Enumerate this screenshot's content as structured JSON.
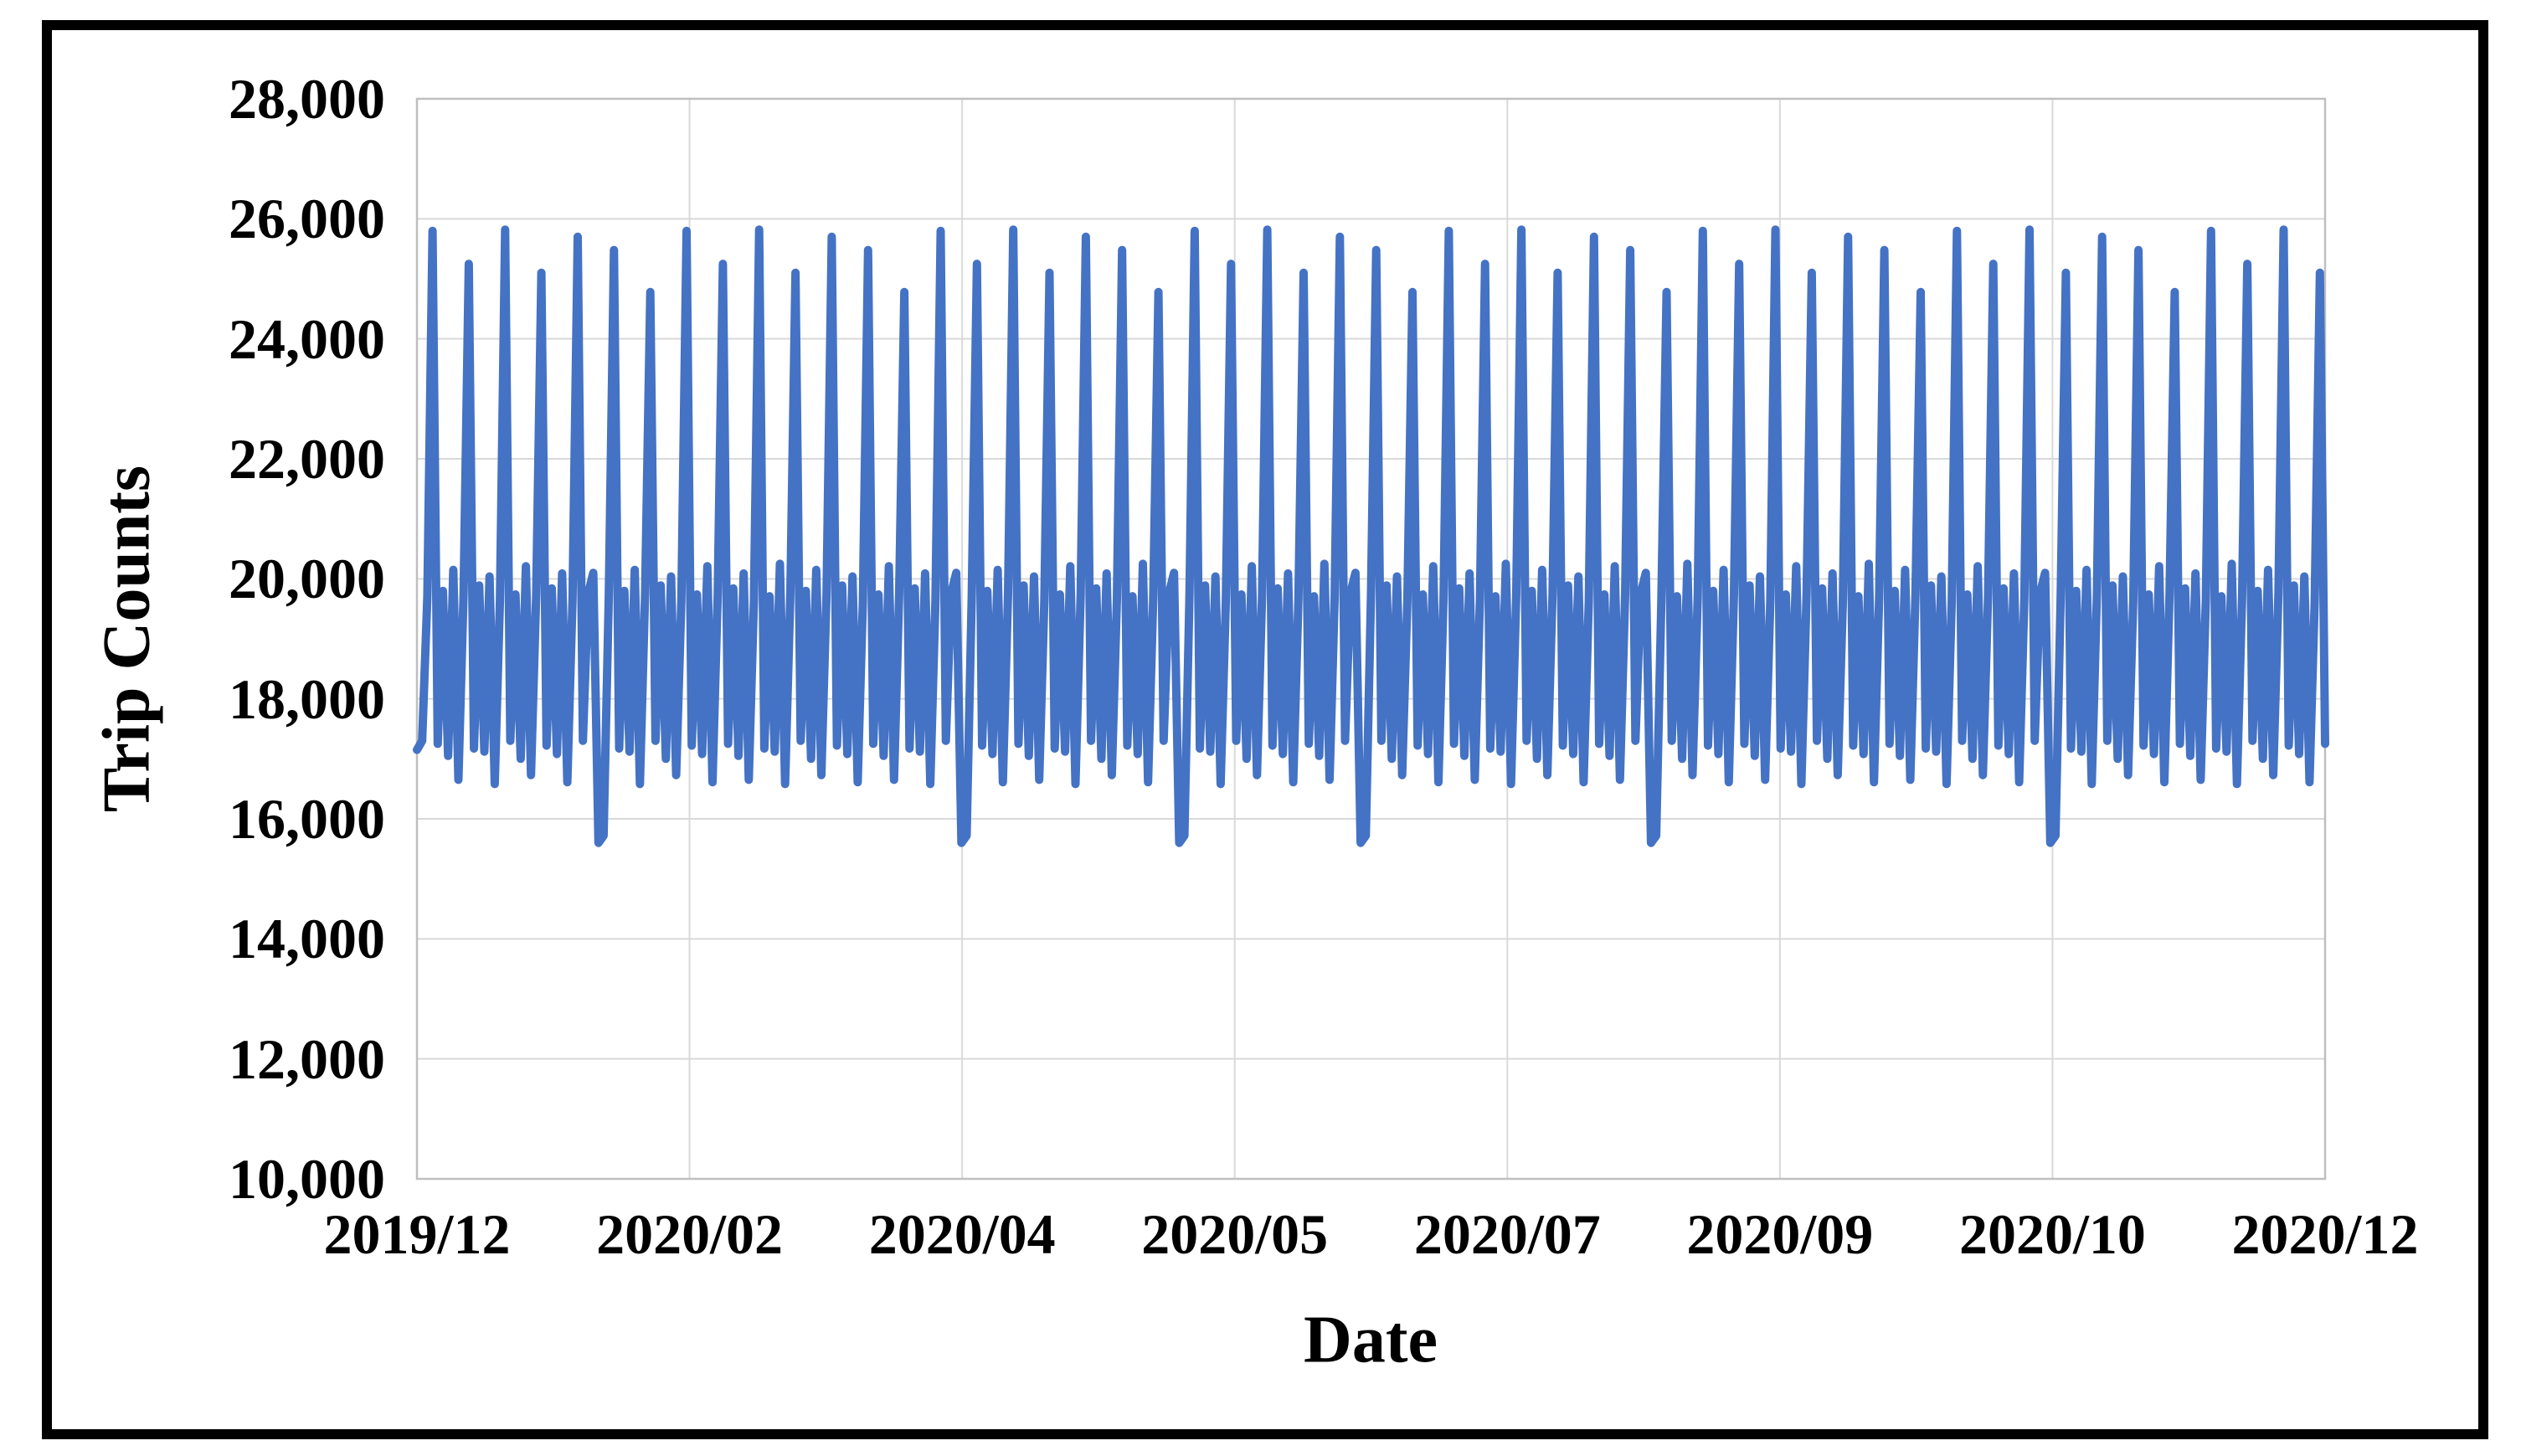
{
  "colors": {
    "line": "#4472C4",
    "gridline": "#D9D9D9",
    "plot_border": "#BFBFBF",
    "frame": "#000000",
    "background": "#FFFFFF",
    "text": "#000000"
  },
  "chart_data": {
    "type": "line",
    "title": "",
    "xlabel": "Date",
    "ylabel": "Trip Counts",
    "x_tick_labels": [
      "2019/12",
      "2020/02",
      "2020/04",
      "2020/05",
      "2020/07",
      "2020/09",
      "2020/10",
      "2020/12"
    ],
    "y_ticks": [
      10000,
      12000,
      14000,
      16000,
      18000,
      20000,
      22000,
      24000,
      26000,
      28000
    ],
    "y_tick_labels": [
      "10,000",
      "12,000",
      "14,000",
      "16,000",
      "18,000",
      "20,000",
      "22,000",
      "24,000",
      "26,000",
      "28,000"
    ],
    "ylim": [
      10000,
      28000
    ],
    "grid": true,
    "legend": "none",
    "marker": "none",
    "description": "Daily trip counts from 2019/12 to 2020/12 with weekly periodicity: one spike day near 25,000-25,800 per week, mid-week bumps near 19,700-20,250, valleys near 16,600-17,300, and deep dips to about 15,600 every 6-10 weeks.",
    "series": [
      {
        "name": "Trip Counts",
        "values": [
          17150,
          17300,
          19700,
          25800,
          17250,
          19800,
          17050,
          20150,
          16650,
          19760,
          25250,
          17170,
          19890,
          17120,
          20040,
          16580,
          19630,
          25820,
          17300,
          19740,
          17000,
          20210,
          16730,
          19730,
          25100,
          17220,
          19840,
          17080,
          20090,
          16610,
          19660,
          25700,
          17300,
          19750,
          20100,
          15600,
          15720,
          19700,
          25480,
          17170,
          19800,
          17120,
          20150,
          16580,
          19760,
          24780,
          17300,
          19890,
          17000,
          20040,
          16730,
          19630,
          25800,
          17220,
          19740,
          17080,
          20210,
          16610,
          19730,
          25250,
          17250,
          19840,
          17050,
          20090,
          16650,
          19660,
          25820,
          17170,
          19710,
          17120,
          20250,
          16580,
          19700,
          25100,
          17300,
          19800,
          17000,
          20150,
          16730,
          19760,
          25700,
          17220,
          19890,
          17080,
          20040,
          16610,
          19630,
          25480,
          17250,
          19740,
          17050,
          20210,
          16650,
          19730,
          24780,
          17170,
          19840,
          17120,
          20090,
          16580,
          19660,
          25800,
          17300,
          19750,
          20100,
          15600,
          15720,
          19700,
          25250,
          17220,
          19800,
          17080,
          20150,
          16610,
          19760,
          25820,
          17250,
          19890,
          17050,
          20040,
          16650,
          19630,
          25100,
          17170,
          19740,
          17120,
          20210,
          16580,
          19730,
          25700,
          17300,
          19840,
          17000,
          20090,
          16730,
          19660,
          25480,
          17220,
          19710,
          17080,
          20250,
          16610,
          19700,
          24780,
          17300,
          19750,
          20100,
          15600,
          15720,
          19760,
          25800,
          17170,
          19890,
          17120,
          20040,
          16580,
          19630,
          25250,
          17300,
          19740,
          17000,
          20210,
          16730,
          19730,
          25820,
          17220,
          19840,
          17080,
          20090,
          16610,
          19660,
          25100,
          17250,
          19710,
          17050,
          20250,
          16650,
          19700,
          25700,
          17300,
          19750,
          20100,
          15600,
          15720,
          19760,
          25480,
          17300,
          19890,
          17000,
          20040,
          16730,
          19630,
          24780,
          17220,
          19740,
          17080,
          20210,
          16610,
          19730,
          25800,
          17250,
          19840,
          17050,
          20090,
          16650,
          19660,
          25250,
          17170,
          19710,
          17120,
          20250,
          16580,
          19700,
          25820,
          17300,
          19800,
          17000,
          20150,
          16730,
          19760,
          25100,
          17220,
          19890,
          17080,
          20040,
          16610,
          19630,
          25700,
          17250,
          19740,
          17050,
          20210,
          16650,
          19730,
          25480,
          17300,
          19750,
          20100,
          15600,
          15720,
          19660,
          24780,
          17300,
          19710,
          17000,
          20250,
          16730,
          19700,
          25800,
          17220,
          19800,
          17080,
          20150,
          16610,
          19760,
          25250,
          17250,
          19890,
          17050,
          20040,
          16650,
          19630,
          25820,
          17170,
          19740,
          17120,
          20210,
          16580,
          19730,
          25100,
          17300,
          19840,
          17000,
          20090,
          16730,
          19660,
          25700,
          17220,
          19710,
          17080,
          20250,
          16610,
          19700,
          25480,
          17250,
          19800,
          17050,
          20150,
          16650,
          19760,
          24780,
          17170,
          19890,
          17120,
          20040,
          16580,
          19630,
          25800,
          17300,
          19740,
          17000,
          20210,
          16730,
          19730,
          25250,
          17220,
          19840,
          17080,
          20090,
          16610,
          19660,
          25820,
          17300,
          19750,
          20100,
          15600,
          15720,
          19700,
          25100,
          17170,
          19800,
          17120,
          20150,
          16580,
          19760,
          25700,
          17300,
          19890,
          17000,
          20040,
          16730,
          19630,
          25480,
          17220,
          19740,
          17080,
          20210,
          16610,
          19730,
          24780,
          17250,
          19840,
          17050,
          20090,
          16650,
          19660,
          25800,
          17170,
          19710,
          17120,
          20250,
          16580,
          19700,
          25250,
          17300,
          19800,
          17000,
          20150,
          16730,
          19760,
          25820,
          17220,
          19890,
          17080,
          20040,
          16610,
          19630,
          25100,
          17250
        ]
      }
    ]
  }
}
